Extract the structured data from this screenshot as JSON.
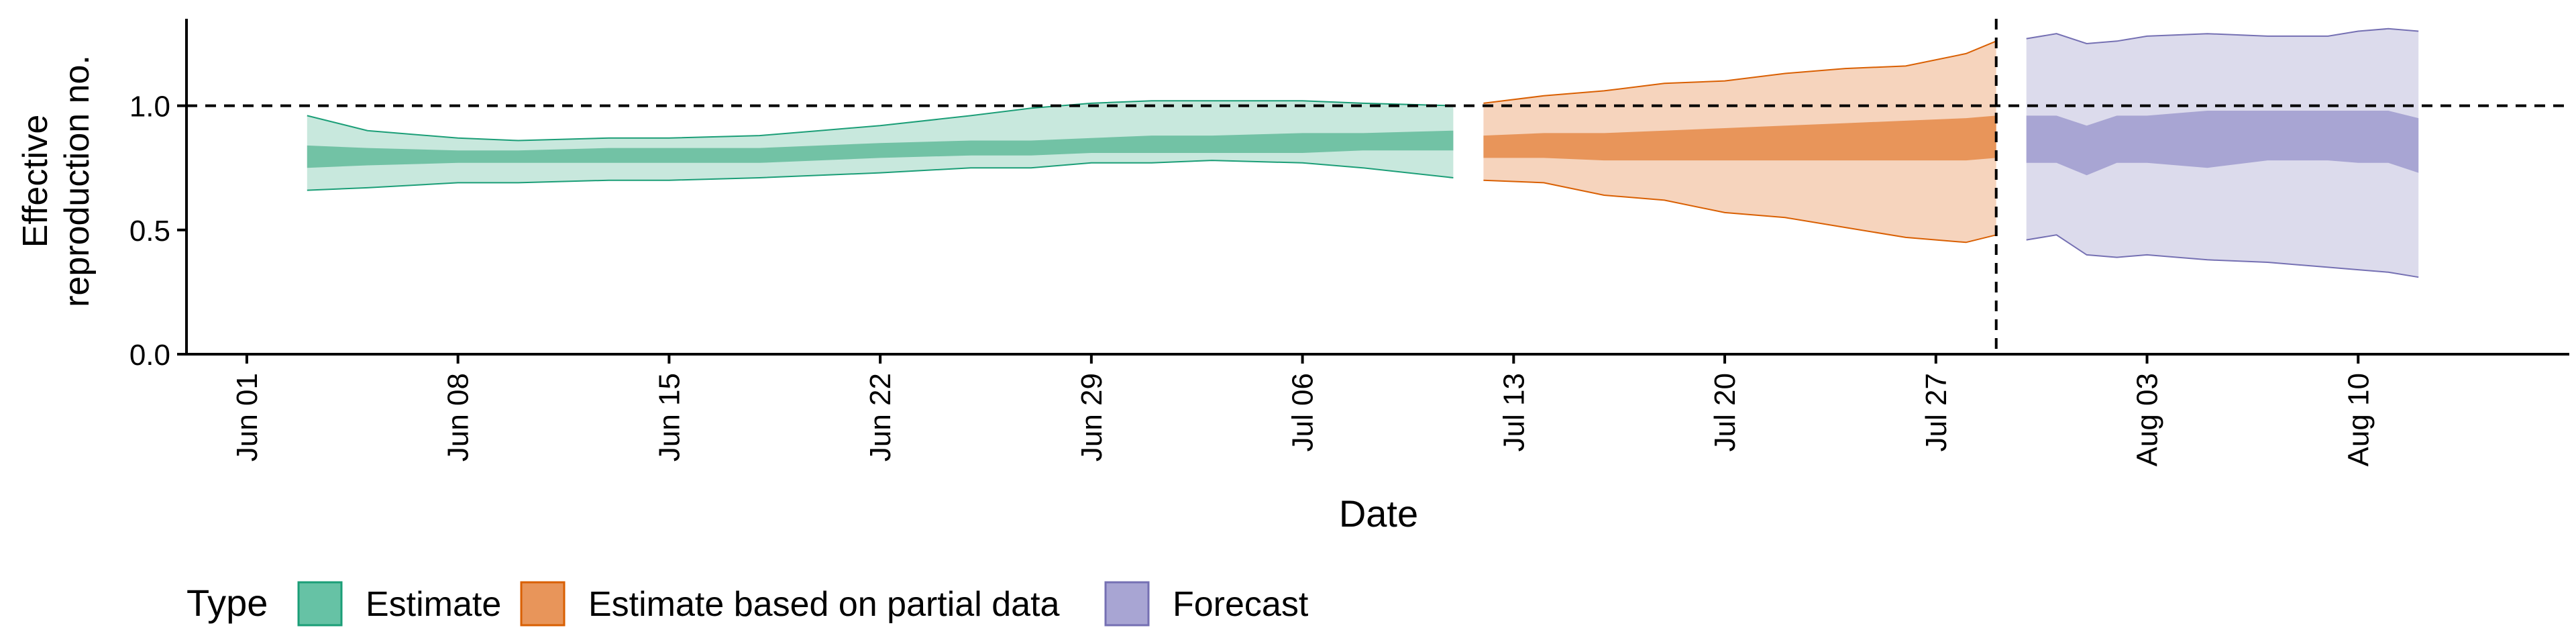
{
  "chart_data": {
    "type": "area",
    "xlabel": "Date",
    "ylabel_lines": [
      "Effective",
      "reproduction no."
    ],
    "x_ticks": [
      "Jun 01",
      "Jun 08",
      "Jun 15",
      "Jun 22",
      "Jun 29",
      "Jul 06",
      "Jul 13",
      "Jul 20",
      "Jul 27",
      "Aug 03",
      "Aug 10"
    ],
    "y_ticks": [
      "0.0",
      "0.5",
      "1.0"
    ],
    "ylim": [
      0,
      1.35
    ],
    "xlim_days": [
      "2020-05-30",
      "2020-08-17"
    ],
    "reference_line_y": 1.0,
    "reference_line_x": "2020-07-29",
    "grid": false,
    "legend_position": "bottom-left",
    "legend": {
      "title": "Type",
      "items": [
        {
          "label": "Estimate",
          "color": "#66c2a5",
          "border": "#1b9e77"
        },
        {
          "label": "Estimate based on partial data",
          "color": "#e8955a",
          "border": "#d95f02"
        },
        {
          "label": "Forecast",
          "color": "#a8a5d3",
          "border": "#7570b3"
        }
      ]
    },
    "series": [
      {
        "name": "Estimate",
        "color_light": "#c8e8dd",
        "color_dark": "#72c2a5",
        "outline": "#1b9e77",
        "dates": [
          "2020-06-03",
          "2020-06-05",
          "2020-06-08",
          "2020-06-10",
          "2020-06-13",
          "2020-06-15",
          "2020-06-18",
          "2020-06-20",
          "2020-06-22",
          "2020-06-25",
          "2020-06-27",
          "2020-06-29",
          "2020-07-01",
          "2020-07-03",
          "2020-07-06",
          "2020-07-08",
          "2020-07-11"
        ],
        "upper90": [
          0.96,
          0.9,
          0.87,
          0.86,
          0.87,
          0.87,
          0.88,
          0.9,
          0.92,
          0.96,
          0.99,
          1.01,
          1.02,
          1.02,
          1.02,
          1.01,
          1.0
        ],
        "upper50": [
          0.84,
          0.83,
          0.82,
          0.82,
          0.83,
          0.83,
          0.83,
          0.84,
          0.85,
          0.86,
          0.86,
          0.87,
          0.88,
          0.88,
          0.89,
          0.89,
          0.9
        ],
        "lower50": [
          0.75,
          0.76,
          0.77,
          0.77,
          0.77,
          0.77,
          0.77,
          0.78,
          0.79,
          0.8,
          0.8,
          0.81,
          0.81,
          0.81,
          0.81,
          0.82,
          0.82
        ],
        "lower90": [
          0.66,
          0.67,
          0.69,
          0.69,
          0.7,
          0.7,
          0.71,
          0.72,
          0.73,
          0.75,
          0.75,
          0.77,
          0.77,
          0.78,
          0.77,
          0.75,
          0.71
        ]
      },
      {
        "name": "Estimate based on partial data",
        "color_light": "#f6d4bd",
        "color_dark": "#e8955a",
        "outline": "#d95f02",
        "dates": [
          "2020-07-12",
          "2020-07-14",
          "2020-07-16",
          "2020-07-18",
          "2020-07-20",
          "2020-07-22",
          "2020-07-24",
          "2020-07-26",
          "2020-07-28",
          "2020-07-29"
        ],
        "upper90": [
          1.01,
          1.04,
          1.06,
          1.09,
          1.1,
          1.13,
          1.15,
          1.16,
          1.21,
          1.26
        ],
        "upper50": [
          0.88,
          0.89,
          0.89,
          0.9,
          0.91,
          0.92,
          0.93,
          0.94,
          0.95,
          0.96
        ],
        "lower50": [
          0.79,
          0.79,
          0.78,
          0.78,
          0.78,
          0.78,
          0.78,
          0.78,
          0.78,
          0.79
        ],
        "lower90": [
          0.7,
          0.69,
          0.64,
          0.62,
          0.57,
          0.55,
          0.51,
          0.47,
          0.45,
          0.48
        ]
      },
      {
        "name": "Forecast",
        "color_light": "#dcdbec",
        "color_dark": "#a8a5d3",
        "outline": "#7570b3",
        "dates": [
          "2020-07-30",
          "2020-07-31",
          "2020-08-01",
          "2020-08-02",
          "2020-08-03",
          "2020-08-05",
          "2020-08-07",
          "2020-08-09",
          "2020-08-10",
          "2020-08-11",
          "2020-08-12"
        ],
        "upper90": [
          1.27,
          1.29,
          1.25,
          1.26,
          1.28,
          1.29,
          1.28,
          1.28,
          1.3,
          1.31,
          1.3
        ],
        "upper50": [
          0.96,
          0.96,
          0.92,
          0.96,
          0.96,
          0.98,
          0.98,
          0.98,
          0.98,
          0.98,
          0.95
        ],
        "lower50": [
          0.77,
          0.77,
          0.72,
          0.77,
          0.77,
          0.75,
          0.78,
          0.78,
          0.77,
          0.77,
          0.73
        ],
        "lower90": [
          0.46,
          0.48,
          0.4,
          0.39,
          0.4,
          0.38,
          0.37,
          0.35,
          0.34,
          0.33,
          0.31
        ]
      }
    ]
  }
}
